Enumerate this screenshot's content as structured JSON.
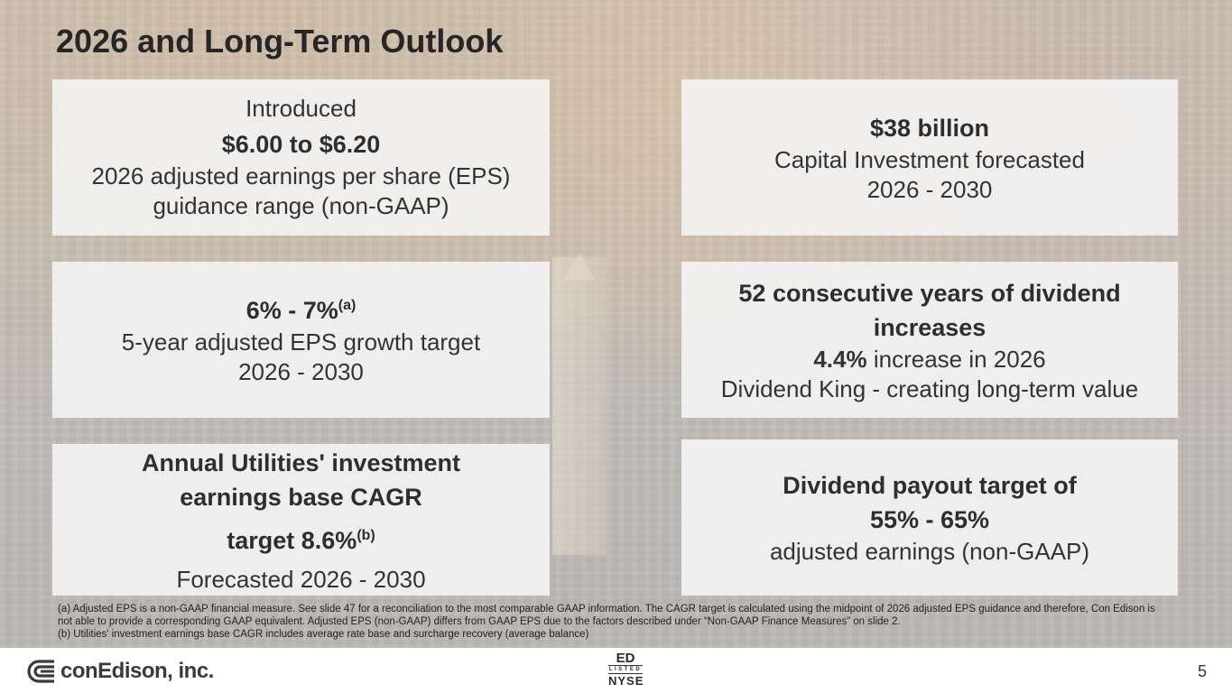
{
  "slide": {
    "title": "2026 and Long-Term Outlook",
    "page_number": "5"
  },
  "cards": {
    "eps_guidance": {
      "intro": "Introduced",
      "value": "$6.00 to $6.20",
      "line1": "2026 adjusted earnings per share (EPS)",
      "line2": "guidance range (non-GAAP)"
    },
    "capital": {
      "value": "$38 billion",
      "line1": "Capital Investment forecasted",
      "line2": "2026 - 2030"
    },
    "eps_growth": {
      "value": "6% - 7%",
      "note": "(a)",
      "line1": "5-year adjusted EPS growth target",
      "line2": "2026 - 2030"
    },
    "dividend": {
      "headline1": "52 consecutive years of dividend",
      "headline2": "increases",
      "pct": "4.4%",
      "pct_text": " increase in 2026",
      "line2": "Dividend King - creating long-term value"
    },
    "cagr": {
      "headline1": "Annual Utilities' investment",
      "headline2": "earnings base CAGR",
      "target": "target 8.6%",
      "note": "(b)",
      "line1": "Forecasted 2026 - 2030"
    },
    "payout": {
      "headline1": "Dividend payout target of",
      "headline2": "55% - 65%",
      "line1": "adjusted earnings (non-GAAP)"
    }
  },
  "footnotes": {
    "a": "(a) Adjusted EPS is a non-GAAP financial measure. See slide 47 for a reconciliation to the most comparable GAAP information. The CAGR target is calculated using the midpoint of 2026 adjusted EPS guidance and therefore, Con Edison is not able to provide a corresponding GAAP equivalent.  Adjusted EPS (non-GAAP) differs from GAAP EPS due to the factors described under “Non-GAAP Finance Measures” on slide 2.",
    "b": "(b) Utilities' investment earnings base CAGR includes average rate base and surcharge recovery (average balance)"
  },
  "footer": {
    "company": "conEdison, inc.",
    "ticker": "ED",
    "listed": "LISTED",
    "exchange": "NYSE"
  },
  "colors": {
    "card_bg": "#f2f2f2",
    "text": "#333333"
  },
  "icons": [
    "conedison-logo-icon",
    "nyse-listed-icon"
  ]
}
